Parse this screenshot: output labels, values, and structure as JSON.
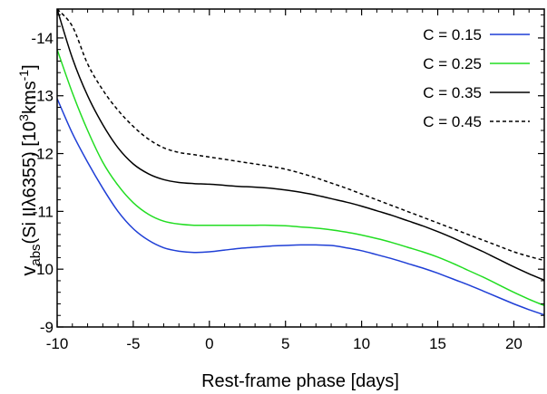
{
  "chart_data": {
    "type": "line",
    "xlabel": "Rest-frame phase [days]",
    "ylabel_main": "v",
    "ylabel_sub": "abs",
    "ylabel_rest": "(Si IIλ6355)  [10",
    "ylabel_sup1": "3",
    "ylabel_units": "kms",
    "ylabel_sup2": "-1",
    "ylabel_end": "]",
    "xlim": [
      -10,
      22
    ],
    "ylim": [
      9,
      14.5
    ],
    "y_inverted": true,
    "x_ticks": [
      -10,
      -5,
      0,
      5,
      10,
      15,
      20
    ],
    "x_tick_labels": [
      "-10",
      "-5",
      "0",
      "5",
      "10",
      "15",
      "20"
    ],
    "y_ticks": [
      9,
      10,
      11,
      12,
      13,
      14
    ],
    "y_tick_labels": [
      "-9",
      "10",
      "-11",
      "-12",
      "-13",
      "-14"
    ],
    "grid": false,
    "legend_position": "top-right",
    "x": [
      -10,
      -9,
      -8,
      -7,
      -6,
      -5,
      -4,
      -3,
      -2,
      -1,
      0,
      1,
      2,
      3,
      4,
      5,
      6,
      7,
      8,
      9,
      10,
      11,
      12,
      13,
      14,
      15,
      16,
      17,
      18,
      19,
      20,
      21,
      22
    ],
    "series": [
      {
        "name": "C = 0.15",
        "color": "#1f3fd6",
        "dash": "solid",
        "values": [
          12.95,
          12.35,
          11.85,
          11.4,
          11.0,
          10.7,
          10.5,
          10.37,
          10.31,
          10.29,
          10.3,
          10.33,
          10.36,
          10.38,
          10.4,
          10.41,
          10.42,
          10.42,
          10.41,
          10.37,
          10.32,
          10.25,
          10.18,
          10.1,
          10.02,
          9.93,
          9.83,
          9.73,
          9.62,
          9.51,
          9.4,
          9.3,
          9.21
        ]
      },
      {
        "name": "C = 0.25",
        "color": "#22dd22",
        "dash": "solid",
        "values": [
          13.8,
          13.05,
          12.4,
          11.85,
          11.45,
          11.15,
          10.95,
          10.83,
          10.78,
          10.76,
          10.76,
          10.76,
          10.76,
          10.76,
          10.76,
          10.75,
          10.73,
          10.71,
          10.68,
          10.64,
          10.59,
          10.53,
          10.46,
          10.38,
          10.3,
          10.21,
          10.1,
          9.98,
          9.86,
          9.73,
          9.6,
          9.48,
          9.37
        ]
      },
      {
        "name": "C = 0.35",
        "color": "#000000",
        "dash": "solid",
        "values": [
          14.5,
          13.65,
          13.0,
          12.5,
          12.1,
          11.82,
          11.65,
          11.55,
          11.5,
          11.48,
          11.47,
          11.45,
          11.43,
          11.42,
          11.4,
          11.37,
          11.33,
          11.28,
          11.22,
          11.16,
          11.09,
          11.01,
          10.93,
          10.84,
          10.75,
          10.65,
          10.54,
          10.42,
          10.3,
          10.17,
          10.04,
          9.92,
          9.81
        ]
      },
      {
        "name": "C = 0.45",
        "color": "#000000",
        "dash": "dashed",
        "values": [
          14.5,
          14.2,
          13.55,
          13.1,
          12.75,
          12.47,
          12.25,
          12.1,
          12.02,
          11.98,
          11.94,
          11.9,
          11.86,
          11.82,
          11.78,
          11.73,
          11.66,
          11.58,
          11.49,
          11.4,
          11.3,
          11.2,
          11.1,
          11.0,
          10.9,
          10.8,
          10.7,
          10.6,
          10.5,
          10.4,
          10.3,
          10.22,
          10.15
        ]
      }
    ]
  }
}
